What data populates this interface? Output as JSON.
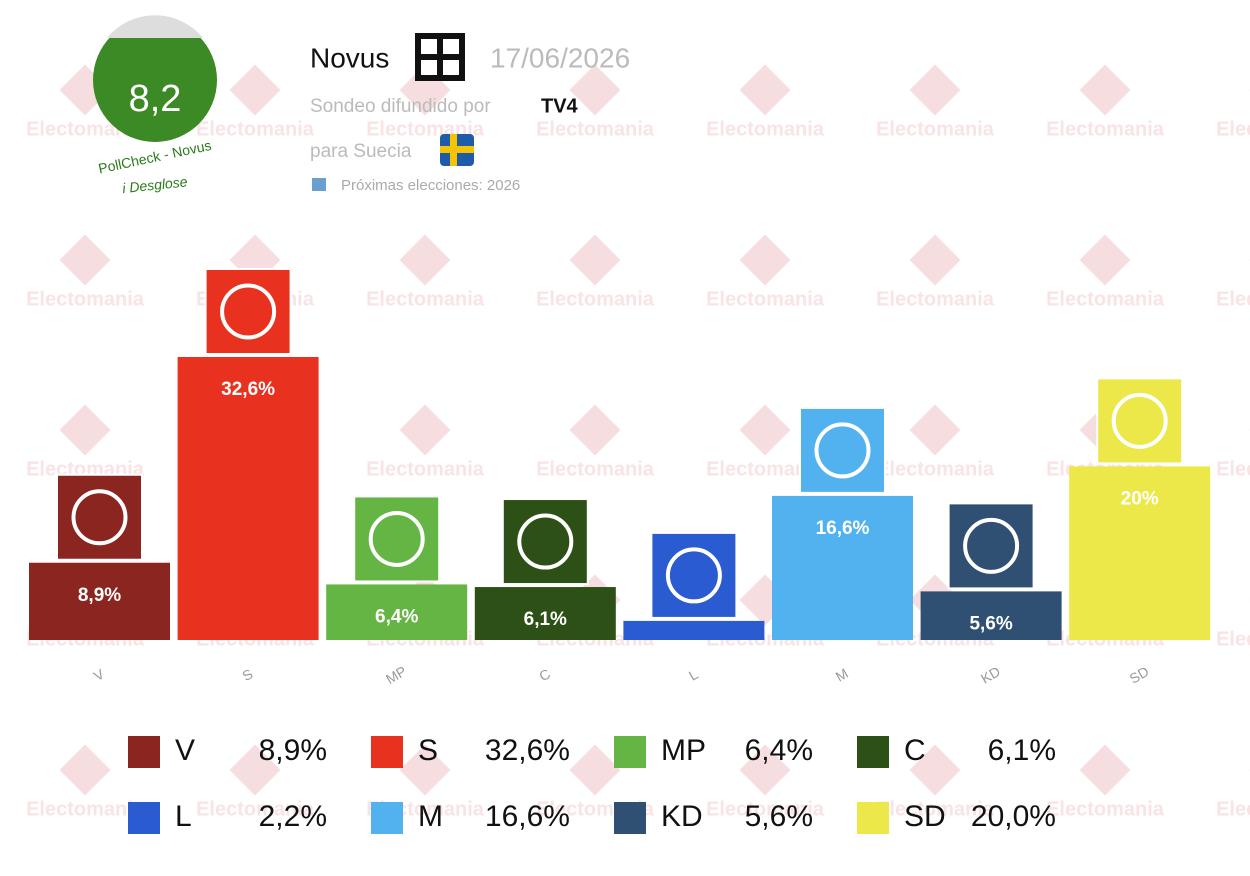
{
  "header": {
    "score": "8,2",
    "pollcheck": "PollCheck - Novus",
    "breakdown": "i Desglose",
    "pollster": "Novus",
    "date": "17/06/2026",
    "broadcast_label": "Sondeo difundido por",
    "broadcaster": "TV4",
    "country": "para Suecia",
    "next_elections": "Próximas elecciones: 2026"
  },
  "watermark": "Electomania",
  "chart_data": {
    "type": "bar",
    "categories": [
      "V",
      "S",
      "MP",
      "C",
      "L",
      "M",
      "KD",
      "SD"
    ],
    "values": [
      8.9,
      32.6,
      6.4,
      6.1,
      2.2,
      16.6,
      5.6,
      20.0
    ],
    "value_labels": [
      "8,9%",
      "32,6%",
      "6,4%",
      "6,1%",
      null,
      "16,6%",
      "5,6%",
      "20%"
    ],
    "colors": [
      "#8b2520",
      "#e8321f",
      "#64b543",
      "#2d5016",
      "#2a5bd0",
      "#52b2ef",
      "#2f4f73",
      "#ece84a"
    ],
    "legend_value_labels": [
      "8,9%",
      "32,6%",
      "6,4%",
      "6,1%",
      "2,2%",
      "16,6%",
      "5,6%",
      "20,0%"
    ]
  }
}
